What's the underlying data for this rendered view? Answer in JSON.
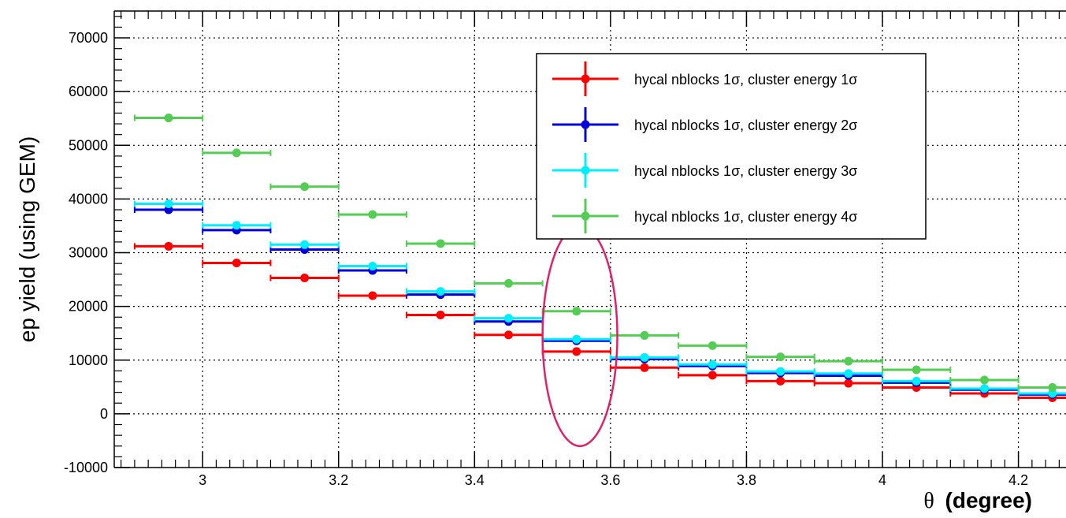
{
  "chart_data": {
    "type": "scatter",
    "xlabel": "θ (degree)",
    "xlabel_symbol": "θ",
    "xlabel_text": "(degree)",
    "ylabel": "ep yield (using GEM)",
    "xlim": [
      2.87,
      4.27
    ],
    "ylim": [
      -10000,
      75000
    ],
    "x_ticks": [
      3,
      3.2,
      3.4,
      3.6,
      3.8,
      4,
      4.2
    ],
    "x_tick_labels": [
      "3",
      "3.2",
      "3.4",
      "3.6",
      "3.8",
      "4",
      "4.2"
    ],
    "y_ticks": [
      -10000,
      0,
      10000,
      20000,
      30000,
      40000,
      50000,
      60000,
      70000
    ],
    "y_tick_labels": [
      "-10000",
      "0",
      "10000",
      "20000",
      "30000",
      "40000",
      "50000",
      "60000",
      "70000"
    ],
    "grid": true,
    "legend_position": "top-right",
    "bin_width": 0.1,
    "x": [
      2.95,
      3.05,
      3.15,
      3.25,
      3.35,
      3.45,
      3.55,
      3.65,
      3.75,
      3.85,
      3.95,
      4.05,
      4.15,
      4.25
    ],
    "series": [
      {
        "name": "hycal nblocks 1σ, cluster energy 1σ",
        "color": "#ff0000",
        "values": [
          31200,
          28100,
          25300,
          22000,
          18400,
          14700,
          11600,
          8600,
          7200,
          6100,
          5700,
          4900,
          3800,
          3000
        ]
      },
      {
        "name": "hycal nblocks 1σ, cluster energy 2σ",
        "color": "#0000dd",
        "values": [
          38000,
          34200,
          30600,
          26700,
          22200,
          17200,
          13600,
          10200,
          8900,
          7600,
          7100,
          5800,
          4500,
          3600
        ]
      },
      {
        "name": "hycal nblocks 1σ, cluster energy 3σ",
        "color": "#00eeff",
        "values": [
          39100,
          35100,
          31500,
          27500,
          22800,
          17800,
          13900,
          10500,
          9200,
          7900,
          7500,
          6100,
          4700,
          3800
        ]
      },
      {
        "name": "hycal nblocks 1σ, cluster energy 4σ",
        "color": "#55cc55",
        "values": [
          55100,
          48600,
          42300,
          37100,
          31700,
          24300,
          19100,
          14600,
          12700,
          10600,
          9800,
          8200,
          6300,
          4900
        ]
      }
    ],
    "annotations": [
      {
        "type": "ellipse",
        "color": "#e0206a",
        "x_center": 3.555,
        "y_center": 14500,
        "x_radius": 0.055,
        "y_radius": 20500
      }
    ]
  }
}
